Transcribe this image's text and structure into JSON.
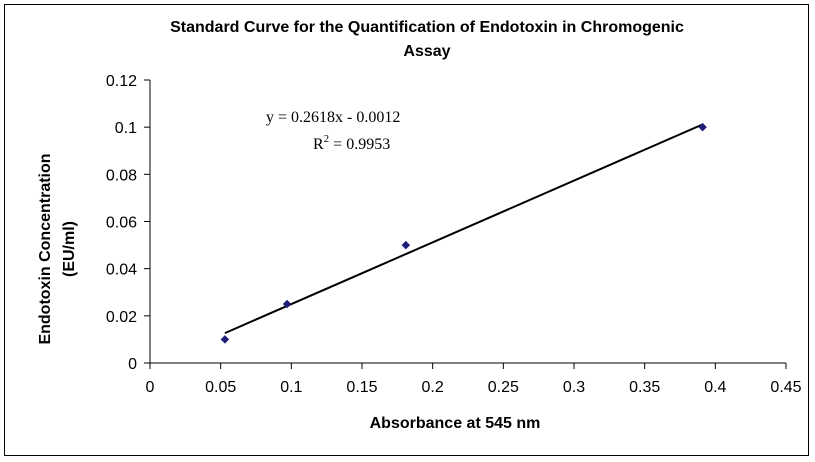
{
  "chart_data": {
    "type": "scatter",
    "title_lines": [
      "Standard Curve for the Quantification of Endotoxin in Chromogenic",
      "Assay"
    ],
    "xlabel": "Absorbance at 545 nm",
    "ylabel_lines": [
      "Endotoxin Concentration",
      "(EU/ml)"
    ],
    "xlim": [
      0,
      0.45
    ],
    "ylim": [
      0,
      0.12
    ],
    "xticks": [
      "0",
      "0.05",
      "0.1",
      "0.15",
      "0.2",
      "0.25",
      "0.3",
      "0.35",
      "0.4",
      "0.45"
    ],
    "yticks": [
      "0",
      "0.02",
      "0.04",
      "0.06",
      "0.08",
      "0.1",
      "0.12"
    ],
    "grid": false,
    "series": [
      {
        "x": [
          0.053,
          0.097,
          0.181,
          0.391
        ],
        "y": [
          0.01,
          0.025,
          0.05,
          0.1
        ],
        "color": "#1f1f7a"
      }
    ],
    "trendline": {
      "slope": 0.2618,
      "intercept": -0.0012,
      "x_range": [
        0.053,
        0.391
      ],
      "equation": "y = 0.2618x - 0.0012",
      "r2_label": "R",
      "r2_superscript": "2",
      "r2_value": " = 0.9953"
    }
  }
}
